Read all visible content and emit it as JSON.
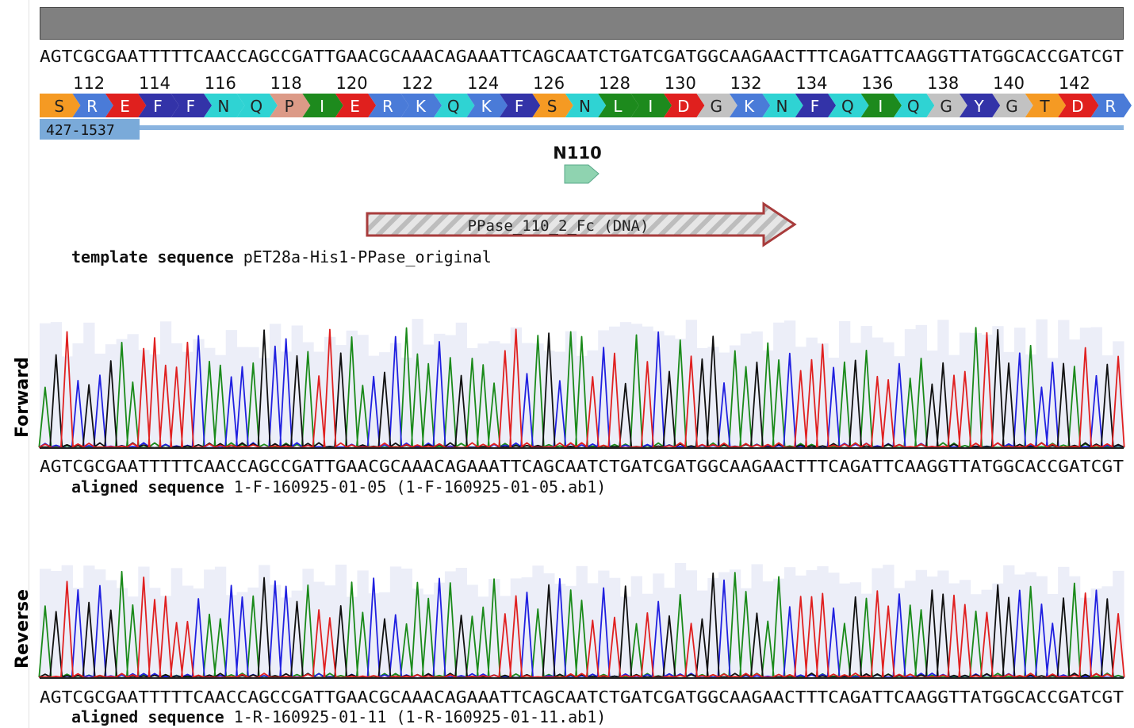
{
  "template": {
    "sequence": "AGTCGCGAATTTTTCAACCAGCCGATTGAACGCAAACAGAAATTCAGCAATCTGATCGATGGCAAGAACTTTCAGATTCAAGGTTATGGCACCGATCGT",
    "label_key": "template sequence",
    "label_value": "pET28a-His1-PPase_original"
  },
  "aa_numbers": [
    "112",
    "114",
    "116",
    "118",
    "120",
    "122",
    "124",
    "126",
    "128",
    "130",
    "132",
    "134",
    "136",
    "138",
    "140",
    "142"
  ],
  "amino_acids": [
    "S",
    "R",
    "E",
    "F",
    "F",
    "N",
    "Q",
    "P",
    "I",
    "E",
    "R",
    "K",
    "Q",
    "K",
    "F",
    "S",
    "N",
    "L",
    "I",
    "D",
    "G",
    "K",
    "N",
    "F",
    "Q",
    "I",
    "Q",
    "G",
    "Y",
    "G",
    "T",
    "D",
    "R"
  ],
  "aa_colors": {
    "S": "#f59a23",
    "T": "#f59a23",
    "R": "#4a7bd8",
    "K": "#4a7bd8",
    "E": "#e0201e",
    "D": "#e0201e",
    "F": "#3333a8",
    "Y": "#3333a8",
    "N": "#2fd3d3",
    "Q": "#2fd3d3",
    "P": "#dc9a87",
    "I": "#1d8a1d",
    "L": "#1d8a1d",
    "G": "#c2c2c2"
  },
  "range_label": "427-1537",
  "feature_label": "N110",
  "primer_label": "PPase_110_2_Fc (DNA)",
  "forward": {
    "side_label": "Forward",
    "sequence": "AGTCGCGAATTTTTCAACCAGCCGATTGAACGCAAACAGAAATTCAGCAATCTGATCGATGGCAAGAACTTTCAGATTCAAGGTTATGGCACCGATCGT",
    "label_key": "aligned sequence",
    "label_value": "1-F-160925-01-05 (1-F-160925-01-05.ab1)"
  },
  "reverse": {
    "side_label": "Reverse",
    "sequence": "AGTCGCGAATTTTTCAACCAGCCGATTGAACGCAAACAGAAATTCAGCAATCTGATCGATGGCAAGAACTTTCAGATTCAAGGTTATGGCACCGATCGT",
    "label_key": "aligned sequence",
    "label_value": "1-R-160925-01-11 (1-R-160925-01-11.ab1)"
  },
  "base_colors": {
    "A": "#1a8a1a",
    "C": "#2020e0",
    "G": "#111111",
    "T": "#e02020"
  }
}
